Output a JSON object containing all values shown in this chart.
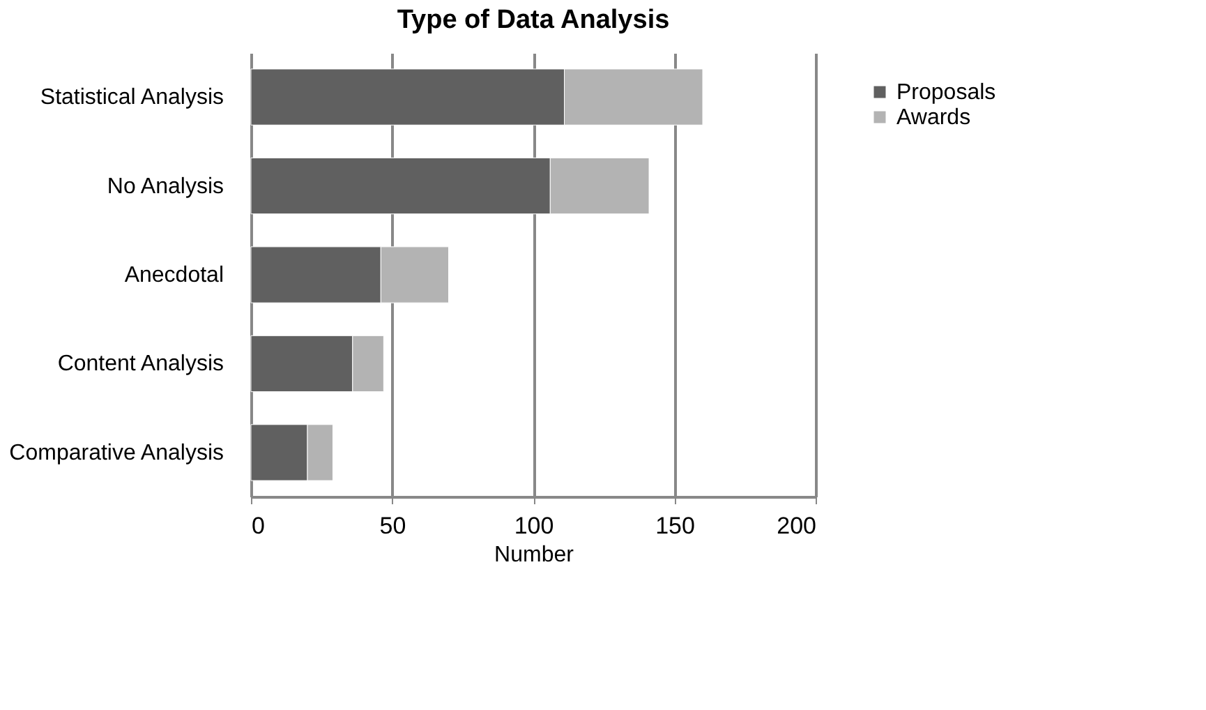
{
  "chart_data": {
    "type": "bar",
    "title": "Type of Data Analysis",
    "xlabel": "Number",
    "orientation": "horizontal",
    "stacked": true,
    "categories": [
      "Statistical Analysis",
      "No Analysis",
      "Anecdotal",
      "Content Analysis",
      "Comparative Analysis"
    ],
    "series": [
      {
        "name": "Proposals",
        "color": "#606060",
        "values": [
          111,
          106,
          46,
          36,
          20
        ]
      },
      {
        "name": "Awards",
        "color": "#b3b3b3",
        "values": [
          49,
          35,
          24,
          11,
          9
        ]
      }
    ],
    "xlim": [
      0,
      200
    ],
    "xticks": [
      0,
      50,
      100,
      150,
      200
    ],
    "grid": "x",
    "legend": "right"
  }
}
